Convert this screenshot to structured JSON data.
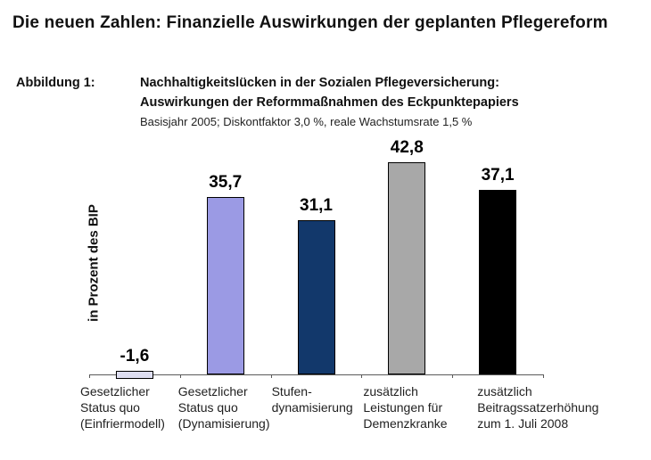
{
  "document": {
    "title": "Die neuen Zahlen: Finanzielle Auswirkungen der geplanten Pflegereform"
  },
  "figure": {
    "label": "Abbildung 1:",
    "title_line1": "Nachhaltigkeitslücken in der Sozialen Pflegeversicherung:",
    "title_line2": "Auswirkungen der Reformmaßnahmen des Eckpunktepapiers",
    "subtitle": "Basisjahr 2005; Diskontfaktor 3,0 %, reale Wachstumsrate 1,5 %"
  },
  "chart_data": {
    "type": "bar",
    "title": "Nachhaltigkeitslücken in der Sozialen Pflegeversicherung: Auswirkungen der Reformmaßnahmen des Eckpunktepapiers",
    "subtitle": "Basisjahr 2005; Diskontfaktor 3,0 %, reale Wachstumsrate 1,5 %",
    "ylabel": "in Prozent des BIP",
    "xlabel": "",
    "ylim": [
      -5,
      48
    ],
    "grid": false,
    "legend": "none",
    "categories": [
      "Gesetzlicher Status quo (Einfriermodell)",
      "Gesetzlicher Status quo (Dynamisierung)",
      "Stufendynamisierung",
      "zusätzlich Leistungen für Demenzkranke",
      "zusätzlich Beitragssatzerhöhung zum 1. Juli 2008"
    ],
    "category_lines": [
      [
        "Gesetzlicher",
        "Status quo",
        "(Einfriermodell)"
      ],
      [
        "Gesetzlicher",
        "Status quo",
        "(Dynamisierung)"
      ],
      [
        "Stufen-",
        "dynamisierung"
      ],
      [
        "zusätzlich",
        "Leistungen für",
        "Demenzkranke"
      ],
      [
        "zusätzlich",
        "Beitragssatzerhöhung",
        "zum 1. Juli 2008"
      ]
    ],
    "values": [
      -1.6,
      35.7,
      31.1,
      42.8,
      37.1
    ],
    "value_labels": [
      "-1,6",
      "35,7",
      "31,1",
      "42,8",
      "37,1"
    ],
    "bar_colors": [
      "#dfdff2",
      "#9b9ae4",
      "#12386b",
      "#a8a8a8",
      "#000000"
    ],
    "bar_border_color": "#000000",
    "axis_color": "#595959"
  }
}
